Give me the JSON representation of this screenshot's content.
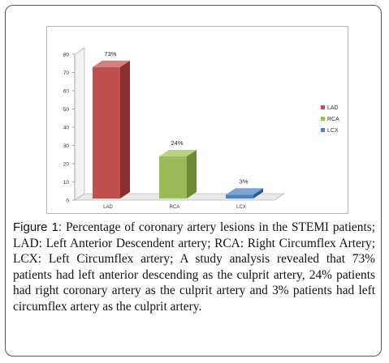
{
  "caption": {
    "label": "Figure 1:",
    "text": "Percentage of coronary artery lesions in the STEMI patients; LAD: Left Anterior Descendent artery; RCA: Right Circumflex Artery; LCX: Left Circumflex artery; A study analysis revealed that 73% patients had left anterior descending as the culprit artery, 24% patients had right coronary artery as the culprit artery and 3% patients had left circumflex artery as the culprit artery."
  },
  "chart_data": {
    "type": "bar",
    "categories": [
      "LAD",
      "RCA",
      "LCX"
    ],
    "values": [
      73,
      24,
      3
    ],
    "data_labels": [
      "73%",
      "24%",
      "3%"
    ],
    "ylim": [
      0,
      80
    ],
    "yticks": [
      0,
      10,
      20,
      30,
      40,
      50,
      60,
      70,
      80
    ],
    "grid": false,
    "legend": {
      "placement": "right",
      "entries": [
        {
          "name": "LAD",
          "color": "#c0504d"
        },
        {
          "name": "RCA",
          "color": "#9bbb59"
        },
        {
          "name": "LCX",
          "color": "#4f81bd"
        }
      ]
    },
    "colors": {
      "LAD": {
        "front": "#c0504d",
        "side": "#8a2f2d",
        "top": "#d47f7c"
      },
      "RCA": {
        "front": "#9bbb59",
        "side": "#6e8a35",
        "top": "#bad284"
      },
      "LCX": {
        "front": "#4f81bd",
        "side": "#2f5d92",
        "top": "#7ea4d3"
      }
    }
  }
}
